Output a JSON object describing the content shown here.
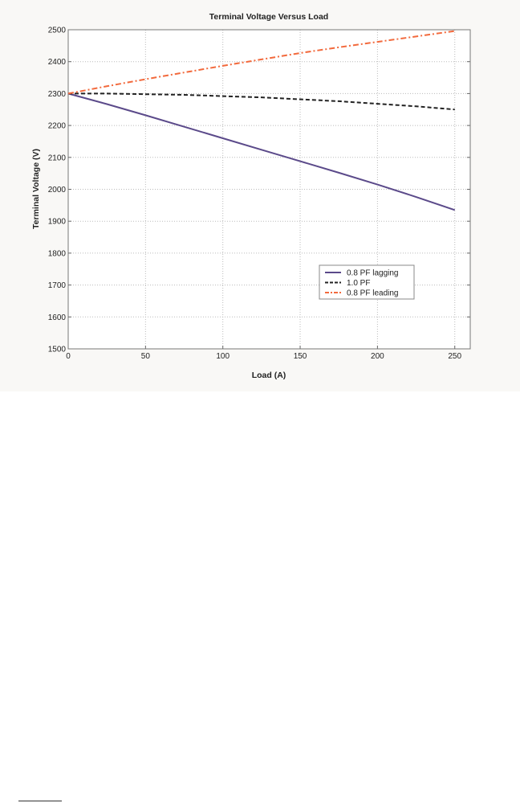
{
  "chart_data": {
    "type": "line",
    "title": "Terminal Voltage Versus Load",
    "xlabel": "Load (A)",
    "ylabel": "Terminal Voltage (V)",
    "xlim": [
      0,
      260
    ],
    "ylim": [
      1500,
      2500
    ],
    "xticks": [
      0,
      50,
      100,
      150,
      200,
      250
    ],
    "yticks": [
      1500,
      1600,
      1700,
      1800,
      1900,
      2000,
      2100,
      2200,
      2300,
      2400,
      2500
    ],
    "grid": true,
    "legend_position": "lower-right",
    "x": [
      0,
      25,
      50,
      75,
      100,
      125,
      150,
      175,
      200,
      225,
      250
    ],
    "series": [
      {
        "name": "0.8 PF lagging",
        "color": "#5b4a8a",
        "style": "solid",
        "values": [
          2300,
          2267,
          2232,
          2196,
          2160,
          2124,
          2088,
          2052,
          2015,
          1976,
          1935
        ]
      },
      {
        "name": "1.0 PF",
        "color": "#222222",
        "style": "dashed",
        "values": [
          2300,
          2300,
          2298,
          2296,
          2292,
          2288,
          2282,
          2276,
          2268,
          2260,
          2250
        ]
      },
      {
        "name": "0.8 PF leading",
        "color": "#f26a3d",
        "style": "dashdot",
        "values": [
          2300,
          2323,
          2345,
          2366,
          2387,
          2407,
          2427,
          2445,
          2462,
          2479,
          2496
        ]
      }
    ]
  }
}
